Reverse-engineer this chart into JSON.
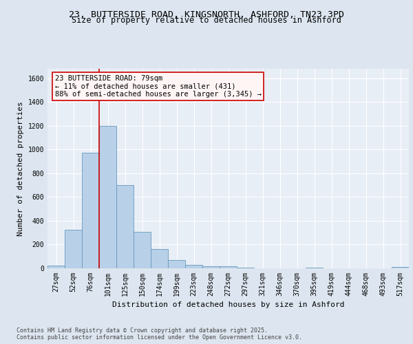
{
  "title_line1": "23, BUTTERSIDE ROAD, KINGSNORTH, ASHFORD, TN23 3PD",
  "title_line2": "Size of property relative to detached houses in Ashford",
  "xlabel": "Distribution of detached houses by size in Ashford",
  "ylabel": "Number of detached properties",
  "footer": "Contains HM Land Registry data © Crown copyright and database right 2025.\nContains public sector information licensed under the Open Government Licence v3.0.",
  "categories": [
    "27sqm",
    "52sqm",
    "76sqm",
    "101sqm",
    "125sqm",
    "150sqm",
    "174sqm",
    "199sqm",
    "223sqm",
    "248sqm",
    "272sqm",
    "297sqm",
    "321sqm",
    "346sqm",
    "370sqm",
    "395sqm",
    "419sqm",
    "444sqm",
    "468sqm",
    "493sqm",
    "517sqm"
  ],
  "values": [
    25,
    325,
    975,
    1200,
    700,
    305,
    160,
    70,
    30,
    20,
    15,
    5,
    0,
    0,
    0,
    8,
    0,
    0,
    0,
    0,
    10
  ],
  "bar_color": "#b8d0e8",
  "bar_edge_color": "#6699bb",
  "vline_color": "#cc0000",
  "vline_pos": 2.5,
  "annotation_text": "23 BUTTERSIDE ROAD: 79sqm\n← 11% of detached houses are smaller (431)\n88% of semi-detached houses are larger (3,345) →",
  "annotation_border_color": "#cc0000",
  "annotation_face_color": "#fff5f5",
  "ylim": [
    0,
    1680
  ],
  "yticks": [
    0,
    200,
    400,
    600,
    800,
    1000,
    1200,
    1400,
    1600
  ],
  "bg_color": "#dde6f0",
  "plot_bg_color": "#e8eef6",
  "grid_color": "#ffffff",
  "title_fontsize": 9.5,
  "subtitle_fontsize": 8.5,
  "axis_label_fontsize": 8,
  "tick_fontsize": 7,
  "annotation_fontsize": 7.5,
  "footer_fontsize": 6
}
